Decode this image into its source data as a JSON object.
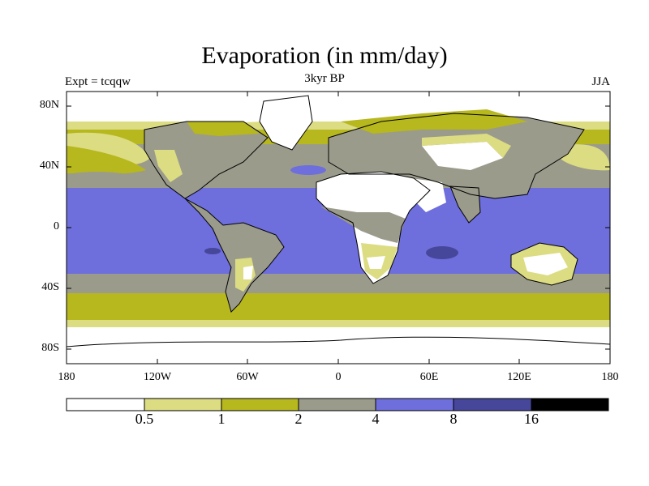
{
  "title": "Evaporation (in mm/day)",
  "subtitle": "3kyr BP",
  "left_label": "Expt = tcqqw",
  "right_label": "JJA",
  "y_ticks": [
    "80N",
    "40N",
    "0",
    "40S",
    "80S"
  ],
  "x_ticks": [
    "180",
    "120W",
    "60W",
    "0",
    "60E",
    "120E",
    "180"
  ],
  "colorbar": {
    "levels": [
      "0.5",
      "1",
      "2",
      "4",
      "8",
      "16"
    ],
    "colors": [
      "#ffffff",
      "#dcdc82",
      "#b7b71e",
      "#9b9b8c",
      "#6e6edc",
      "#46469b",
      "#000000"
    ]
  },
  "map_colors": {
    "ocean_tropics": "#6e6edc",
    "ocean_mid": "#9b9b8c",
    "ocean_high": "#b7b71e",
    "desert": "#ffffff",
    "arid": "#dcdc82",
    "max": "#46469b"
  }
}
